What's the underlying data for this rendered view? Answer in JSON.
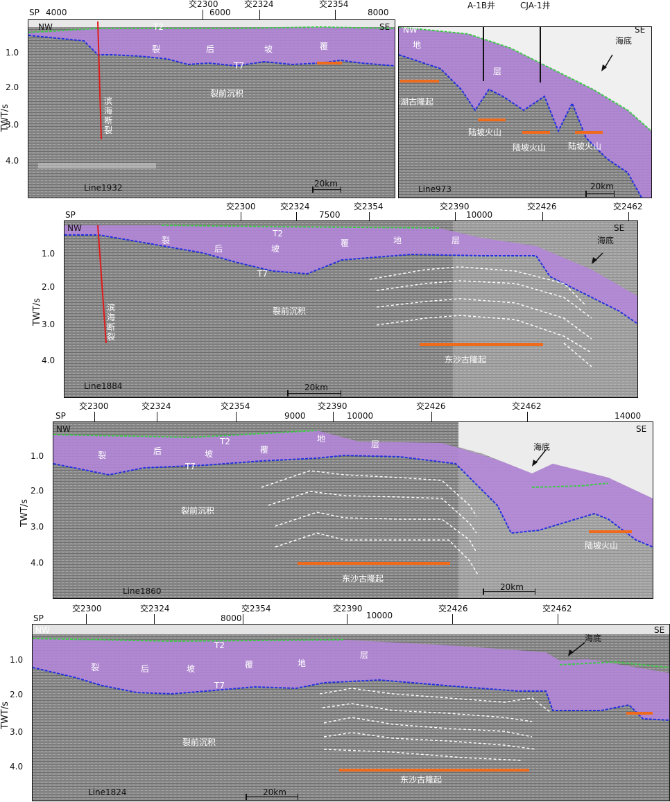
{
  "colors": {
    "syn_rift_fill": "#b586dc",
    "t2_horizon": "#3ec84a",
    "t7_horizon": "#2030e0",
    "fault": "#e01a1a",
    "high_bar": "#f06a1c",
    "inner_reflector": "#ffffff"
  },
  "axis_title": "TWT/s",
  "twt_ticks": [
    "1.0",
    "2.0",
    "3.0",
    "4.0"
  ],
  "scale_text": "20km",
  "panels": {
    "line1932": {
      "line_name": "Line1932",
      "sp_label": "SP",
      "shot_points": [
        "4000",
        "6000",
        "8000"
      ],
      "crosslines": [
        "交2300",
        "交2324",
        "交2354"
      ],
      "nw": "NW",
      "se": "SE",
      "t2": "T2",
      "t7": "T7",
      "strata_chars": [
        "裂",
        "后",
        "坡",
        "覆"
      ],
      "pre_rift": "裂前沉积",
      "fault_label": "滨海断裂"
    },
    "line973": {
      "line_name": "Line973",
      "wells": [
        "A-1B井",
        "CJA-1井"
      ],
      "nw": "NW",
      "se": "SE",
      "seafloor": "海底",
      "strata_chars": [
        "地",
        "层"
      ],
      "paleo_high": "北港彩湖古隆起",
      "volcanoes": [
        "陆坡火山",
        "陆坡火山",
        "陆坡火山"
      ]
    },
    "line1884": {
      "line_name": "Line1884",
      "sp_label": "SP",
      "shot_points": [
        "7500",
        "10000"
      ],
      "crosslines": [
        "交2300",
        "交2324",
        "交2354",
        "交2390",
        "交2426",
        "交2462"
      ],
      "nw": "NW",
      "se": "SE",
      "t2": "T2",
      "t7": "T7",
      "strata_chars": [
        "裂",
        "后",
        "坡",
        "覆",
        "地",
        "层"
      ],
      "pre_rift": "裂前沉积",
      "fault_label": "滨海断裂",
      "seafloor": "海底",
      "paleo_high": "东沙古隆起"
    },
    "line1860": {
      "line_name": "Line1860",
      "sp_label": "SP",
      "shot_points": [
        "9000",
        "10000",
        "14000"
      ],
      "crosslines": [
        "交2300",
        "交2324",
        "交2354",
        "交2390",
        "交2426",
        "交2462"
      ],
      "nw": "NW",
      "se": "SE",
      "t2": "T2",
      "t7": "T7",
      "strata_chars": [
        "裂",
        "后",
        "坡",
        "覆",
        "地",
        "层"
      ],
      "pre_rift": "裂前沉积",
      "seafloor": "海底",
      "paleo_high": "东沙古隆起",
      "volcano": "陆坡火山"
    },
    "line1824": {
      "line_name": "Line1824",
      "sp_label": "SP",
      "shot_points": [
        "8000",
        "10000"
      ],
      "crosslines": [
        "交2300",
        "交2324",
        "交2354",
        "交2390",
        "交2426",
        "交2462"
      ],
      "nw": "NW",
      "se": "SE",
      "t2": "T2",
      "t7": "T7",
      "strata_chars": [
        "裂",
        "后",
        "坡",
        "覆",
        "地",
        "层"
      ],
      "pre_rift": "裂前沉积",
      "seafloor": "海底",
      "paleo_high": "东沙古隆起"
    }
  }
}
